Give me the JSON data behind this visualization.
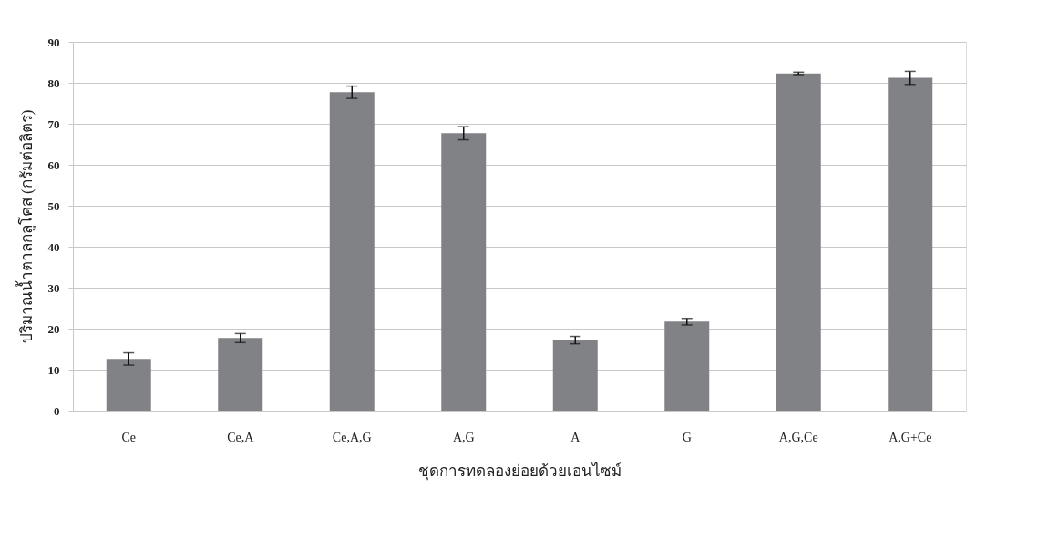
{
  "chart_data": {
    "type": "bar",
    "ylabel": "ปริมาณน้ำตาลกลูโคส (กรัมต่อลิตร)",
    "xlabel": "ชุดการทดลองย่อยด้วยเอนไซม์",
    "categories": [
      "Ce",
      "Ce,A",
      "Ce,A,G",
      "A,G",
      "A",
      "G",
      "A,G,Ce",
      "A,G+Ce"
    ],
    "values": [
      12.6,
      17.7,
      77.7,
      67.7,
      17.2,
      21.7,
      82.3,
      81.2
    ],
    "errors": [
      1.5,
      1.1,
      1.5,
      1.6,
      0.9,
      0.8,
      0.3,
      1.6
    ],
    "color": "#808285",
    "ylim": [
      0,
      90
    ],
    "yticks": [
      0,
      10,
      20,
      30,
      40,
      50,
      60,
      70,
      80,
      90
    ],
    "grid": "y"
  }
}
